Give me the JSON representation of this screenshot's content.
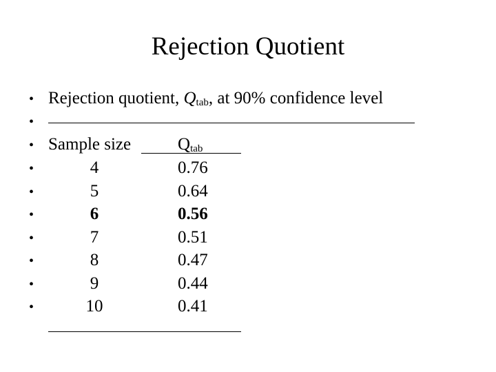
{
  "title": "Rejection Quotient",
  "intro": {
    "before": "Rejection quotient, ",
    "symbol": "Q",
    "subscript": "tab",
    "after": ", at 90% confidence level"
  },
  "table": {
    "header": {
      "size": "Sample size",
      "q_symbol": "Q",
      "q_subscript": "tab"
    },
    "rows": [
      [
        4,
        0.76
      ],
      [
        5,
        0.64
      ],
      [
        6,
        0.56
      ],
      [
        7,
        0.51
      ],
      [
        8,
        0.47
      ],
      [
        9,
        0.44
      ],
      [
        10,
        0.41
      ]
    ]
  }
}
